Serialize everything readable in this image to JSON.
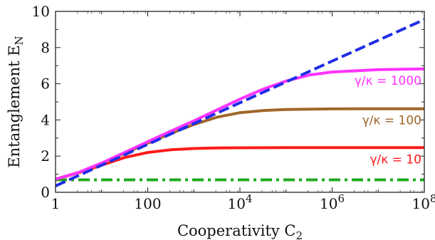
{
  "chart_data": {
    "type": "line",
    "xlabel": "Cooperativity C",
    "xlabel_sub": "2",
    "ylabel": "Entanglement E",
    "ylabel_sub": "N",
    "x_scale": "log10",
    "xlim": [
      1,
      100000000
    ],
    "ylim": [
      0,
      10
    ],
    "x_ticks": [
      {
        "value": 1,
        "label": "1",
        "exp": ""
      },
      {
        "value": 100,
        "label": "100",
        "exp": ""
      },
      {
        "value": 10000,
        "label": "10",
        "exp": "4"
      },
      {
        "value": 1000000,
        "label": "10",
        "exp": "6"
      },
      {
        "value": 100000000,
        "label": "10",
        "exp": "8"
      }
    ],
    "y_ticks": [
      0,
      2,
      4,
      6,
      8,
      10
    ],
    "grid": false,
    "series": [
      {
        "color": "#1f2de6",
        "style": "dashed",
        "x": [
          1,
          10,
          100,
          1000,
          10000,
          100000,
          1000000,
          10000000,
          100000000
        ],
        "y": [
          0.35,
          1.5,
          2.65,
          3.8,
          4.95,
          6.1,
          7.25,
          8.4,
          9.55
        ]
      },
      {
        "color": "#ff33ff",
        "style": "solid",
        "label": "γ/κ = 1000",
        "x": [
          1,
          3.16,
          10,
          31.6,
          100,
          316,
          1000,
          3162,
          10000,
          31623,
          100000,
          316228,
          1000000,
          10000000,
          100000000
        ],
        "y": [
          0.72,
          1.1,
          1.62,
          2.2,
          2.8,
          3.38,
          3.95,
          4.55,
          5.15,
          5.7,
          6.15,
          6.48,
          6.65,
          6.78,
          6.82
        ]
      },
      {
        "color": "#a0672a",
        "style": "solid",
        "label": "γ/κ = 100",
        "x": [
          1,
          3.16,
          10,
          31.6,
          100,
          316,
          1000,
          3162,
          10000,
          31623,
          100000,
          1000000,
          10000000,
          100000000
        ],
        "y": [
          0.72,
          1.1,
          1.6,
          2.15,
          2.72,
          3.25,
          3.75,
          4.15,
          4.4,
          4.52,
          4.58,
          4.61,
          4.62,
          4.62
        ]
      },
      {
        "color": "#ff1a1a",
        "style": "solid",
        "label": "γ/κ = 10",
        "x": [
          1,
          3.16,
          10,
          31.6,
          100,
          316,
          1000,
          3162,
          10000,
          100000,
          1000000,
          10000000,
          100000000
        ],
        "y": [
          0.72,
          1.08,
          1.5,
          1.92,
          2.2,
          2.35,
          2.42,
          2.45,
          2.46,
          2.47,
          2.47,
          2.47,
          2.47
        ]
      },
      {
        "color": "#1faa1f",
        "style": "dashdot",
        "x": [
          1,
          100000000
        ],
        "y": [
          0.69,
          0.69
        ]
      }
    ]
  }
}
